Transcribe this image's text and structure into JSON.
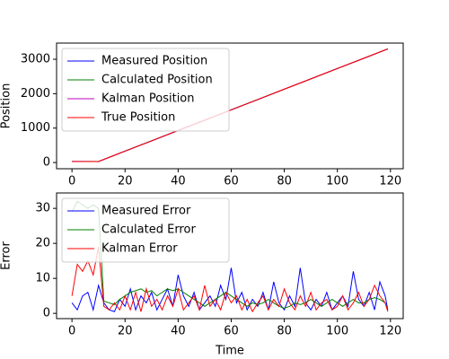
{
  "chart_data": [
    {
      "type": "line",
      "ylabel": "Position",
      "x": [
        0,
        10,
        20,
        30,
        40,
        50,
        60,
        70,
        80,
        90,
        100,
        110,
        119
      ],
      "series": [
        {
          "name": "Measured Position",
          "color": "#0000ff",
          "values": [
            32,
            28,
            333,
            628,
            932,
            1228,
            1533,
            1827,
            2132,
            2428,
            2733,
            3027,
            3302
          ]
        },
        {
          "name": "Calculated Position",
          "color": "#008000",
          "values": [
            30,
            31,
            331,
            631,
            931,
            1231,
            1531,
            1831,
            2131,
            2431,
            2731,
            3031,
            3301
          ]
        },
        {
          "name": "Kalman Position",
          "color": "#bf00bf",
          "values": [
            31,
            30,
            331,
            630,
            931,
            1230,
            1531,
            1830,
            2131,
            2430,
            2731,
            3030,
            3301
          ]
        },
        {
          "name": "True Position",
          "color": "#ff0000",
          "values": [
            30,
            30,
            330,
            630,
            930,
            1230,
            1530,
            1830,
            2130,
            2430,
            2730,
            3030,
            3300
          ]
        }
      ],
      "xlim": [
        -5.8,
        124.8
      ],
      "xticks": [
        0,
        20,
        40,
        60,
        80,
        100,
        120
      ],
      "ylim": [
        -180,
        3470
      ],
      "yticks": [
        0,
        1000,
        2000,
        3000
      ],
      "legend": "upper left"
    },
    {
      "type": "line",
      "xlabel": "Time",
      "ylabel": "Error",
      "x": [
        0,
        2,
        4,
        6,
        8,
        10,
        12,
        14,
        16,
        18,
        20,
        22,
        24,
        26,
        28,
        30,
        32,
        34,
        36,
        38,
        40,
        42,
        44,
        46,
        48,
        50,
        52,
        54,
        56,
        58,
        60,
        62,
        64,
        66,
        68,
        70,
        72,
        74,
        76,
        78,
        80,
        82,
        84,
        86,
        88,
        90,
        92,
        94,
        96,
        98,
        100,
        102,
        104,
        106,
        108,
        110,
        112,
        114,
        116,
        118,
        119
      ],
      "series": [
        {
          "name": "Measured Error",
          "color": "#0000ff",
          "values": [
            3,
            1,
            5,
            6,
            1,
            8,
            3,
            1,
            0.5,
            4,
            2,
            7,
            1,
            5,
            3,
            6,
            1,
            4,
            7,
            2,
            11,
            5,
            2,
            6,
            1,
            3,
            5,
            2,
            8,
            4,
            13,
            3,
            6,
            1,
            4,
            2,
            6,
            1,
            9,
            3,
            1,
            5,
            2,
            13,
            3,
            1,
            4,
            2,
            6,
            1,
            3,
            5,
            2,
            12,
            4,
            2,
            6,
            1,
            9,
            5,
            1
          ]
        },
        {
          "name": "Calculated Error",
          "color": "#008000",
          "values": [
            29,
            32,
            31,
            30,
            31,
            30,
            3.5,
            3,
            2.5,
            4,
            5,
            6,
            6.5,
            7,
            6,
            6.5,
            5,
            6,
            7,
            6.5,
            7,
            6,
            5,
            4,
            3,
            2,
            3,
            4,
            5,
            6,
            5,
            4,
            3,
            2,
            3,
            2.5,
            3,
            4,
            3,
            2,
            1.5,
            2,
            3,
            2.5,
            3,
            4,
            3,
            2,
            3,
            4,
            3,
            2,
            3,
            4,
            3,
            3,
            4,
            4.5,
            4,
            3,
            1
          ]
        },
        {
          "name": "Kalman Error",
          "color": "#ff0000",
          "values": [
            5,
            14,
            12,
            15,
            11,
            19,
            2,
            1,
            3,
            1,
            5,
            1,
            6,
            0.5,
            7,
            2,
            4,
            1,
            5,
            2,
            7,
            1,
            3,
            5,
            1,
            8,
            2,
            4,
            1,
            6,
            3,
            5,
            1,
            4,
            0.5,
            3,
            5,
            1,
            4,
            2,
            7,
            3,
            1,
            5,
            2,
            6,
            1,
            3,
            4,
            1,
            2,
            5,
            1,
            3,
            6,
            2,
            4,
            8,
            5,
            3,
            0.5
          ]
        }
      ],
      "xlim": [
        -5.8,
        124.8
      ],
      "xticks": [
        0,
        20,
        40,
        60,
        80,
        100,
        120
      ],
      "ylim": [
        -1.5,
        34.4
      ],
      "yticks": [
        0,
        10,
        20,
        30
      ],
      "legend": "upper left"
    }
  ]
}
